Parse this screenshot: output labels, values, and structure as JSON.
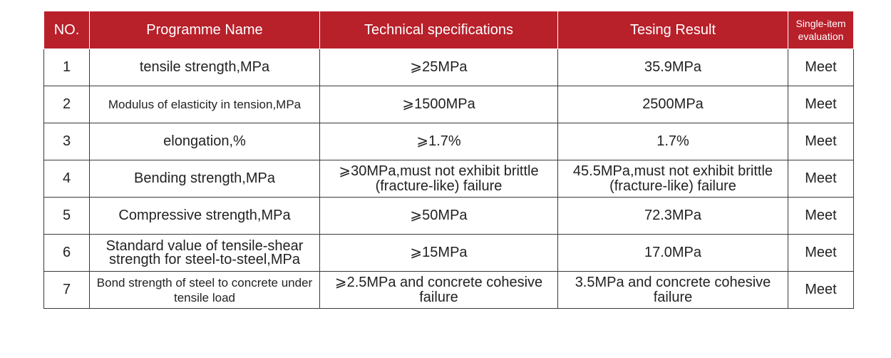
{
  "headers": {
    "no": "NO.",
    "name": "Programme Name",
    "spec": "Technical specifications",
    "result": "Tesing Result",
    "eval": "Single-item evaluation"
  },
  "rows": [
    {
      "no": "1",
      "name": "tensile strength,MPa",
      "spec": "⩾25MPa",
      "result": "35.9MPa",
      "eval": "Meet"
    },
    {
      "no": "2",
      "name": "Modulus of elasticity in tension,MPa",
      "spec": "⩾1500MPa",
      "result": "2500MPa",
      "eval": "Meet"
    },
    {
      "no": "3",
      "name": "elongation,%",
      "spec": "⩾1.7%",
      "result": "1.7%",
      "eval": "Meet"
    },
    {
      "no": "4",
      "name": "Bending strength,MPa",
      "spec": "⩾30MPa,must not exhibit brittle (fracture-like) failure",
      "result": "45.5MPa,must not exhibit brittle (fracture-like) failure",
      "eval": "Meet"
    },
    {
      "no": "5",
      "name": "Compressive strength,MPa",
      "spec": "⩾50MPa",
      "result": "72.3MPa",
      "eval": "Meet"
    },
    {
      "no": "6",
      "name": "Standard value of tensile-shear strength for steel-to-steel,MPa",
      "spec": "⩾15MPa",
      "result": "17.0MPa",
      "eval": "Meet"
    },
    {
      "no": "7",
      "name": "Bond strength of steel to concrete under tensile load",
      "spec": "⩾2.5MPa and concrete cohesive failure",
      "result": "3.5MPa and concrete cohesive failure",
      "eval": "Meet"
    }
  ],
  "colors": {
    "header_bg": "#b8202a",
    "header_text": "#ffffff",
    "border": "#3a3a3a"
  }
}
